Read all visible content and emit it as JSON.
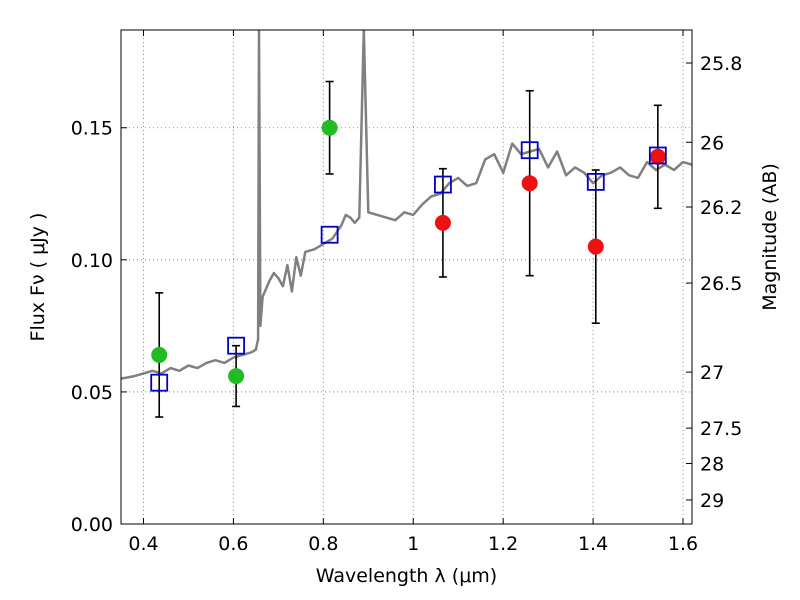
{
  "chart_data": {
    "type": "scatter",
    "title": "",
    "xlabel": "Wavelength  λ (μm)",
    "ylabel": "Flux  Fν  ( μJy )",
    "ylabel_right": "Magnitude (AB)",
    "xlim": [
      0.35,
      1.62
    ],
    "ylim": [
      0.0,
      0.187
    ],
    "grid": true,
    "x_ticks": [
      0.4,
      0.6,
      0.8,
      1.0,
      1.2,
      1.4,
      1.6
    ],
    "x_tick_labels": [
      "0.4",
      "0.6",
      "0.8",
      "1",
      "1.2",
      "1.4",
      "1.6"
    ],
    "y_ticks": [
      0.0,
      0.05,
      0.1,
      0.15
    ],
    "y_tick_labels": [
      "0.00",
      "0.05",
      "0.10",
      "0.15"
    ],
    "right_axis_ticks": [
      {
        "flux": 0.1745,
        "label": "25.8"
      },
      {
        "flux": 0.1445,
        "label": "26"
      },
      {
        "flux": 0.12,
        "label": "26.2"
      },
      {
        "flux": 0.0912,
        "label": "26.5"
      },
      {
        "flux": 0.0575,
        "label": "27"
      },
      {
        "flux": 0.0363,
        "label": "27.5"
      },
      {
        "flux": 0.0229,
        "label": "28"
      },
      {
        "flux": 0.0091,
        "label": "29"
      }
    ],
    "colors": {
      "model": "#808080",
      "green": "#22bb22",
      "red": "#ee1111",
      "square": "#0000cc",
      "errorbar": "#000000"
    },
    "series": [
      {
        "name": "green points",
        "marker": "circle",
        "color": "#22bb22",
        "points": [
          {
            "x": 0.435,
            "y": 0.064,
            "err_low": 0.0235,
            "err_high": 0.0235
          },
          {
            "x": 0.606,
            "y": 0.056,
            "err_low": 0.0115,
            "err_high": 0.0115
          },
          {
            "x": 0.814,
            "y": 0.15,
            "err_low": 0.0175,
            "err_high": 0.0175
          }
        ]
      },
      {
        "name": "red points",
        "marker": "circle",
        "color": "#ee1111",
        "points": [
          {
            "x": 1.066,
            "y": 0.114,
            "err_low": 0.0205,
            "err_high": 0.0205
          },
          {
            "x": 1.259,
            "y": 0.129,
            "err_low": 0.035,
            "err_high": 0.035
          },
          {
            "x": 1.406,
            "y": 0.105,
            "err_low": 0.029,
            "err_high": 0.029
          },
          {
            "x": 1.544,
            "y": 0.139,
            "err_low": 0.0195,
            "err_high": 0.0195
          }
        ]
      },
      {
        "name": "model photometry",
        "marker": "square",
        "color": "#0000cc",
        "points": [
          {
            "x": 0.435,
            "y": 0.0535
          },
          {
            "x": 0.606,
            "y": 0.0675
          },
          {
            "x": 0.814,
            "y": 0.1095
          },
          {
            "x": 1.066,
            "y": 0.1285
          },
          {
            "x": 1.259,
            "y": 0.1415
          },
          {
            "x": 1.406,
            "y": 0.1295
          },
          {
            "x": 1.544,
            "y": 0.1395
          }
        ]
      }
    ],
    "model_spectrum": {
      "name": "SED model",
      "color": "#808080",
      "x": [
        0.35,
        0.38,
        0.4,
        0.42,
        0.44,
        0.46,
        0.48,
        0.5,
        0.52,
        0.54,
        0.56,
        0.58,
        0.6,
        0.62,
        0.64,
        0.65,
        0.655,
        0.657,
        0.66,
        0.665,
        0.67,
        0.68,
        0.69,
        0.7,
        0.71,
        0.72,
        0.73,
        0.74,
        0.75,
        0.76,
        0.78,
        0.8,
        0.82,
        0.84,
        0.85,
        0.86,
        0.87,
        0.88,
        0.89,
        0.9,
        0.92,
        0.94,
        0.96,
        0.98,
        1.0,
        1.02,
        1.04,
        1.06,
        1.08,
        1.1,
        1.12,
        1.14,
        1.16,
        1.18,
        1.2,
        1.22,
        1.24,
        1.26,
        1.28,
        1.3,
        1.32,
        1.34,
        1.36,
        1.38,
        1.4,
        1.42,
        1.44,
        1.46,
        1.48,
        1.5,
        1.52,
        1.54,
        1.56,
        1.58,
        1.6,
        1.62
      ],
      "y": [
        0.055,
        0.056,
        0.057,
        0.058,
        0.057,
        0.059,
        0.058,
        0.06,
        0.059,
        0.061,
        0.062,
        0.061,
        0.063,
        0.064,
        0.065,
        0.066,
        0.07,
        0.187,
        0.075,
        0.086,
        0.088,
        0.092,
        0.095,
        0.093,
        0.09,
        0.098,
        0.088,
        0.101,
        0.094,
        0.103,
        0.104,
        0.106,
        0.108,
        0.113,
        0.117,
        0.116,
        0.114,
        0.116,
        0.187,
        0.118,
        0.117,
        0.116,
        0.115,
        0.118,
        0.117,
        0.121,
        0.124,
        0.125,
        0.129,
        0.131,
        0.128,
        0.129,
        0.138,
        0.14,
        0.133,
        0.144,
        0.14,
        0.141,
        0.142,
        0.135,
        0.141,
        0.132,
        0.135,
        0.133,
        0.129,
        0.132,
        0.133,
        0.135,
        0.132,
        0.131,
        0.137,
        0.134,
        0.136,
        0.134,
        0.137,
        0.136
      ]
    }
  }
}
